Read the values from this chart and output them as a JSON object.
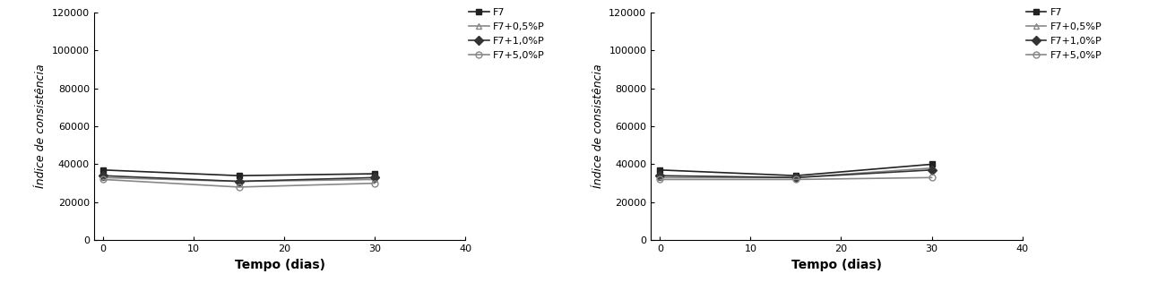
{
  "x": [
    0,
    15,
    30
  ],
  "xlim": [
    -1,
    40
  ],
  "ylim": [
    0,
    120000
  ],
  "yticks": [
    0,
    20000,
    40000,
    60000,
    80000,
    100000,
    120000
  ],
  "ytick_labels": [
    "0",
    "20000",
    "40000",
    "60000",
    "80000",
    "100000",
    "120000"
  ],
  "xticks": [
    0,
    10,
    20,
    30,
    40
  ],
  "xlabel": "Tempo (dias)",
  "ylabel": "Índice de consistência",
  "chart1": {
    "F7": [
      37000,
      34000,
      35000
    ],
    "F7+0.5%P": [
      33000,
      31000,
      32000
    ],
    "F7+1.0%P": [
      34000,
      31000,
      33000
    ],
    "F7+5.0%P": [
      32000,
      28000,
      30000
    ]
  },
  "chart2": {
    "F7": [
      37000,
      34000,
      40000
    ],
    "F7+0.5%P": [
      33000,
      33000,
      38000
    ],
    "F7+1.0%P": [
      34000,
      33000,
      37000
    ],
    "F7+5.0%P": [
      32000,
      32000,
      33000
    ]
  },
  "series_styles": [
    {
      "label": "F7",
      "marker": "s",
      "color": "#222222",
      "fillstyle": "full",
      "linestyle": "-"
    },
    {
      "label": "F7+0,5%P",
      "marker": "^",
      "color": "#888888",
      "fillstyle": "none",
      "linestyle": "-"
    },
    {
      "label": "F7+1,0%P",
      "marker": "D",
      "color": "#333333",
      "fillstyle": "full",
      "linestyle": "-"
    },
    {
      "label": "F7+5,0%P",
      "marker": "o",
      "color": "#888888",
      "fillstyle": "none",
      "linestyle": "-"
    }
  ],
  "legend_labels_left": [
    "F7",
    "F7+0,5%P",
    "F7+1,0%P",
    "F7+5,0%P"
  ],
  "legend_labels_right": [
    "F7",
    "F7+0,5%P",
    "F7+1,0%P",
    "F7+5,0%P"
  ],
  "linewidth": 1.2,
  "markersize": 5,
  "bg_color": "#ffffff",
  "tick_fontsize": 8,
  "label_fontsize": 9,
  "xlabel_fontsize": 10,
  "legend_fontsize": 8
}
